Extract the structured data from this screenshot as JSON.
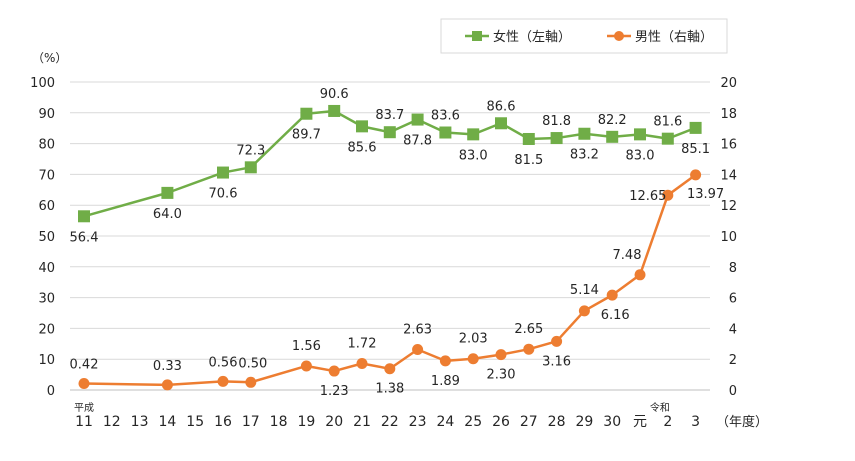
{
  "chart_data": {
    "type": "line",
    "unit_left": "（%）",
    "xlabel": "（年度）",
    "era_labels": [
      "平成",
      "令和"
    ],
    "categories": [
      "11",
      "12",
      "13",
      "14",
      "15",
      "16",
      "17",
      "18",
      "19",
      "20",
      "21",
      "22",
      "23",
      "24",
      "25",
      "26",
      "27",
      "28",
      "29",
      "30",
      "元",
      "2",
      "3"
    ],
    "left_axis": {
      "ylim": [
        0,
        100
      ],
      "ticks": [
        "0",
        "10",
        "20",
        "30",
        "40",
        "50",
        "60",
        "70",
        "80",
        "90",
        "100"
      ]
    },
    "right_axis": {
      "ylim": [
        0,
        20
      ],
      "ticks": [
        "0",
        "2",
        "4",
        "6",
        "8",
        "10",
        "12",
        "14",
        "16",
        "18",
        "20"
      ]
    },
    "grid": true,
    "legend_position": "top-right",
    "series": [
      {
        "name": "女性（左軸）",
        "axis": "left",
        "color": "#70ad47",
        "marker": "square",
        "points": [
          {
            "x": "11",
            "y": 56.4,
            "label": "56.4"
          },
          {
            "x": "14",
            "y": 64.0,
            "label": "64.0"
          },
          {
            "x": "16",
            "y": 70.6,
            "label": "70.6"
          },
          {
            "x": "17",
            "y": 72.3,
            "label": "72.3"
          },
          {
            "x": "19",
            "y": 89.7,
            "label": "89.7"
          },
          {
            "x": "20",
            "y": 90.6,
            "label": "90.6"
          },
          {
            "x": "21",
            "y": 85.6,
            "label": "85.6"
          },
          {
            "x": "22",
            "y": 83.7,
            "label": "83.7"
          },
          {
            "x": "23",
            "y": 87.8,
            "label": "87.8"
          },
          {
            "x": "24",
            "y": 83.6,
            "label": "83.6"
          },
          {
            "x": "25",
            "y": 83.0,
            "label": "83.0"
          },
          {
            "x": "26",
            "y": 86.6,
            "label": "86.6"
          },
          {
            "x": "27",
            "y": 81.5,
            "label": "81.5"
          },
          {
            "x": "28",
            "y": 81.8,
            "label": "81.8"
          },
          {
            "x": "29",
            "y": 83.2,
            "label": "83.2"
          },
          {
            "x": "30",
            "y": 82.2,
            "label": "82.2"
          },
          {
            "x": "元",
            "y": 83.0,
            "label": "83.0"
          },
          {
            "x": "2",
            "y": 81.6,
            "label": "81.6"
          },
          {
            "x": "3",
            "y": 85.1,
            "label": "85.1"
          }
        ]
      },
      {
        "name": "男性（右軸）",
        "axis": "right",
        "color": "#ed7d31",
        "marker": "circle",
        "points": [
          {
            "x": "11",
            "y": 0.42,
            "label": "0.42"
          },
          {
            "x": "14",
            "y": 0.33,
            "label": "0.33"
          },
          {
            "x": "16",
            "y": 0.56,
            "label": "0.56"
          },
          {
            "x": "17",
            "y": 0.5,
            "label": "0.50"
          },
          {
            "x": "19",
            "y": 1.56,
            "label": "1.56"
          },
          {
            "x": "20",
            "y": 1.23,
            "label": "1.23"
          },
          {
            "x": "21",
            "y": 1.72,
            "label": "1.72"
          },
          {
            "x": "22",
            "y": 1.38,
            "label": "1.38"
          },
          {
            "x": "23",
            "y": 2.63,
            "label": "2.63"
          },
          {
            "x": "24",
            "y": 1.89,
            "label": "1.89"
          },
          {
            "x": "25",
            "y": 2.03,
            "label": "2.03"
          },
          {
            "x": "26",
            "y": 2.3,
            "label": "2.30"
          },
          {
            "x": "27",
            "y": 2.65,
            "label": "2.65"
          },
          {
            "x": "28",
            "y": 3.16,
            "label": "3.16"
          },
          {
            "x": "29",
            "y": 5.14,
            "label": "5.14"
          },
          {
            "x": "30",
            "y": 6.16,
            "label": "6.16"
          },
          {
            "x": "元",
            "y": 7.48,
            "label": "7.48"
          },
          {
            "x": "2",
            "y": 12.65,
            "label": "12.65"
          },
          {
            "x": "3",
            "y": 13.97,
            "label": "13.97"
          }
        ]
      }
    ]
  }
}
